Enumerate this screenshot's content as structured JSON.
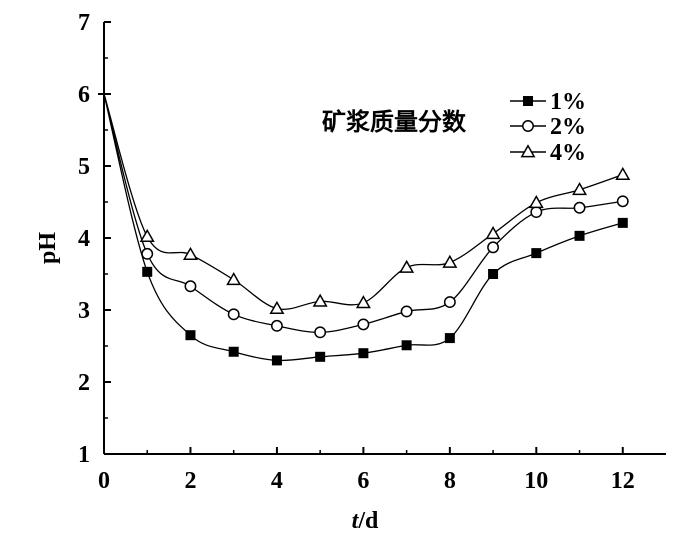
{
  "chart_data": {
    "type": "line",
    "xlabel_italic": "t",
    "xlabel_rest": "/d",
    "ylabel": "pH",
    "xlim": [
      0,
      13
    ],
    "ylim": [
      1,
      7
    ],
    "x_ticks": [
      0,
      2,
      4,
      6,
      8,
      10,
      12
    ],
    "y_ticks": [
      1,
      2,
      3,
      4,
      5,
      6,
      7
    ],
    "legend_title": "矿浆质量分数",
    "legend_position": "top-right",
    "x": [
      0,
      1,
      2,
      3,
      4,
      5,
      6,
      7,
      8,
      9,
      10,
      11,
      12
    ],
    "series": [
      {
        "name": "1%",
        "marker": "filled-square",
        "color": "#000000",
        "values": [
          6.0,
          3.53,
          2.65,
          2.42,
          2.3,
          2.35,
          2.4,
          2.51,
          2.61,
          3.5,
          3.79,
          4.03,
          4.21
        ]
      },
      {
        "name": "2%",
        "marker": "open-circle",
        "color": "#000000",
        "values": [
          6.0,
          3.78,
          3.33,
          2.94,
          2.78,
          2.69,
          2.8,
          2.98,
          3.11,
          3.87,
          4.36,
          4.42,
          4.51
        ]
      },
      {
        "name": "4%",
        "marker": "open-triangle",
        "color": "#000000",
        "values": [
          6.0,
          4.02,
          3.77,
          3.42,
          3.02,
          3.12,
          3.1,
          3.59,
          3.66,
          4.06,
          4.49,
          4.67,
          4.88
        ]
      }
    ]
  }
}
